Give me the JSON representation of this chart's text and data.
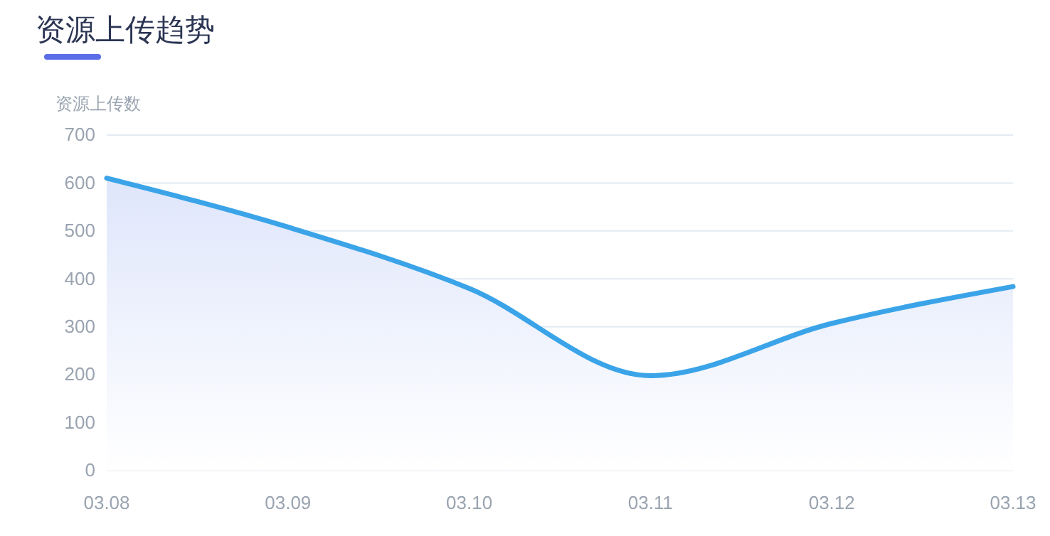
{
  "chart_data": {
    "type": "area",
    "title": "资源上传趋势",
    "ylabel": "资源上传数",
    "categories": [
      "03.08",
      "03.09",
      "03.10",
      "03.11",
      "03.12",
      "03.13"
    ],
    "series": [
      {
        "color": "#3ba4e8",
        "values": [
          610,
          508,
          380,
          198,
          307,
          384
        ]
      }
    ],
    "ylim": [
      0,
      700
    ],
    "yticks": [
      0,
      100,
      200,
      300,
      400,
      500,
      600,
      700
    ],
    "grid": "y",
    "legend": false,
    "marker": "none",
    "line_style": "solid"
  }
}
